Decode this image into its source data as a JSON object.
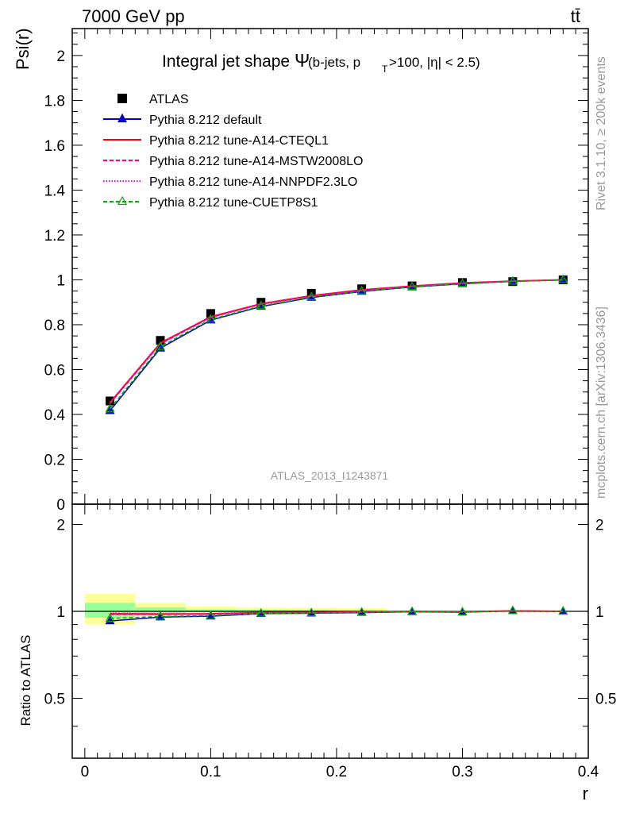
{
  "header": {
    "energy": "7000 GeV pp",
    "process": "tt̄"
  },
  "side_labels": {
    "rivet": "Rivet 3.1.10, ≥ 200k events",
    "mcplots": "mcplots.cern.ch [arXiv:1306.3436]"
  },
  "chart_data": [
    {
      "type": "line",
      "title_main": "Integral jet shape",
      "title_symbol": "Ψ",
      "title_cuts_a": "(b-jets, p",
      "title_cuts_sub": "T",
      "title_cuts_b": ">100, |η| < 2.5)",
      "ylabel": "Psi(r)",
      "watermark": "ATLAS_2013_I1243871",
      "xlim": [
        -0.01,
        0.4
      ],
      "ylim": [
        0,
        2.12
      ],
      "y_ticks": [
        "0",
        "0.2",
        "0.4",
        "0.6",
        "0.8",
        "1",
        "1.2",
        "1.4",
        "1.6",
        "1.8",
        "2"
      ],
      "grid": false,
      "legend_position": "top-left",
      "x": [
        0.02,
        0.06,
        0.1,
        0.14,
        0.18,
        0.22,
        0.26,
        0.3,
        0.34,
        0.38
      ],
      "data": {
        "name": "ATLAS",
        "values": [
          0.46,
          0.73,
          0.85,
          0.9,
          0.94,
          0.96,
          0.973,
          0.988,
          0.992,
          1.0
        ]
      },
      "series": [
        {
          "name": "Pythia 8.212 default",
          "color": "#0000cc",
          "style": "solid",
          "marker": "triangle-filled",
          "values": [
            0.416,
            0.695,
            0.82,
            0.881,
            0.921,
            0.948,
            0.968,
            0.982,
            0.993,
            1.0
          ]
        },
        {
          "name": "Pythia 8.212 tune-A14-CTEQL1",
          "color": "#ff0000",
          "style": "solid",
          "marker": "none",
          "values": [
            0.452,
            0.718,
            0.835,
            0.893,
            0.929,
            0.955,
            0.972,
            0.986,
            0.994,
            1.0
          ]
        },
        {
          "name": "Pythia 8.212 tune-A14-MSTW2008LO",
          "color": "#ff0080",
          "style": "dashed",
          "marker": "none",
          "values": [
            0.448,
            0.714,
            0.832,
            0.891,
            0.927,
            0.953,
            0.971,
            0.985,
            0.994,
            1.0
          ]
        },
        {
          "name": "Pythia 8.212 tune-A14-NNPDF2.3LO",
          "color": "#ff00cc",
          "style": "dotted",
          "marker": "none",
          "values": [
            0.455,
            0.72,
            0.836,
            0.894,
            0.929,
            0.955,
            0.972,
            0.986,
            0.994,
            1.0
          ]
        },
        {
          "name": "Pythia 8.212 tune-CUETP8S1",
          "color": "#00b000",
          "style": "dashed",
          "marker": "triangle-open",
          "values": [
            0.425,
            0.702,
            0.824,
            0.884,
            0.923,
            0.95,
            0.969,
            0.983,
            0.993,
            1.0
          ]
        }
      ]
    },
    {
      "type": "line",
      "ylabel": "Ratio to ATLAS",
      "xlabel": "r",
      "xlim": [
        -0.01,
        0.4
      ],
      "ylim": [
        0.31,
        2.35
      ],
      "y_ticks": [
        "0.5",
        "1",
        "2"
      ],
      "x_ticks": [
        "0",
        "0.1",
        "0.2",
        "0.3",
        "0.4"
      ],
      "grid": false,
      "uncertainty_bands": {
        "edges": [
          0.0,
          0.04,
          0.08,
          0.12,
          0.16,
          0.2,
          0.24,
          0.28,
          0.32,
          0.36,
          0.4
        ],
        "yellow_low": [
          0.9,
          0.967,
          0.985,
          0.988,
          0.99,
          0.992,
          1.0,
          1.0,
          1.0,
          1.0
        ],
        "yellow_high": [
          1.15,
          1.07,
          1.04,
          1.033,
          1.03,
          1.025,
          1.0,
          1.0,
          1.0,
          1.0
        ],
        "green_low": [
          0.95,
          0.985,
          0.992,
          0.995,
          0.996,
          0.997,
          1.0,
          1.0,
          1.0,
          1.0
        ],
        "green_high": [
          1.07,
          1.033,
          1.015,
          1.012,
          1.01,
          1.008,
          1.0,
          1.0,
          1.0,
          1.0
        ]
      },
      "x": [
        0.02,
        0.06,
        0.1,
        0.14,
        0.18,
        0.22,
        0.26,
        0.3,
        0.34,
        0.38
      ],
      "series": [
        {
          "name": "Pythia 8.212 default",
          "color": "#0000cc",
          "style": "solid",
          "marker": "triangle-filled",
          "values": [
            0.926,
            0.955,
            0.962,
            0.982,
            0.985,
            0.99,
            0.996,
            0.993,
            1.004,
            1.0
          ]
        },
        {
          "name": "Pythia 8.212 tune-A14-CTEQL1",
          "color": "#ff0000",
          "style": "solid",
          "marker": "none",
          "values": [
            0.98,
            0.978,
            0.98,
            0.99,
            0.99,
            0.995,
            0.999,
            0.997,
            1.003,
            1.0
          ]
        },
        {
          "name": "Pythia 8.212 tune-A14-MSTW2008LO",
          "color": "#ff0080",
          "style": "dashed",
          "marker": "none",
          "values": [
            0.975,
            0.975,
            0.978,
            0.988,
            0.989,
            0.994,
            0.999,
            0.997,
            1.003,
            1.0
          ]
        },
        {
          "name": "Pythia 8.212 tune-A14-NNPDF2.3LO",
          "color": "#ff00cc",
          "style": "dotted",
          "marker": "none",
          "values": [
            0.985,
            0.982,
            0.982,
            0.991,
            0.99,
            0.995,
            0.999,
            0.997,
            1.003,
            1.0
          ]
        },
        {
          "name": "Pythia 8.212 tune-CUETP8S1",
          "color": "#00b000",
          "style": "dashed",
          "marker": "triangle-open",
          "values": [
            0.945,
            0.96,
            0.966,
            0.984,
            0.987,
            0.992,
            0.997,
            0.994,
            1.004,
            1.0
          ]
        }
      ]
    }
  ]
}
